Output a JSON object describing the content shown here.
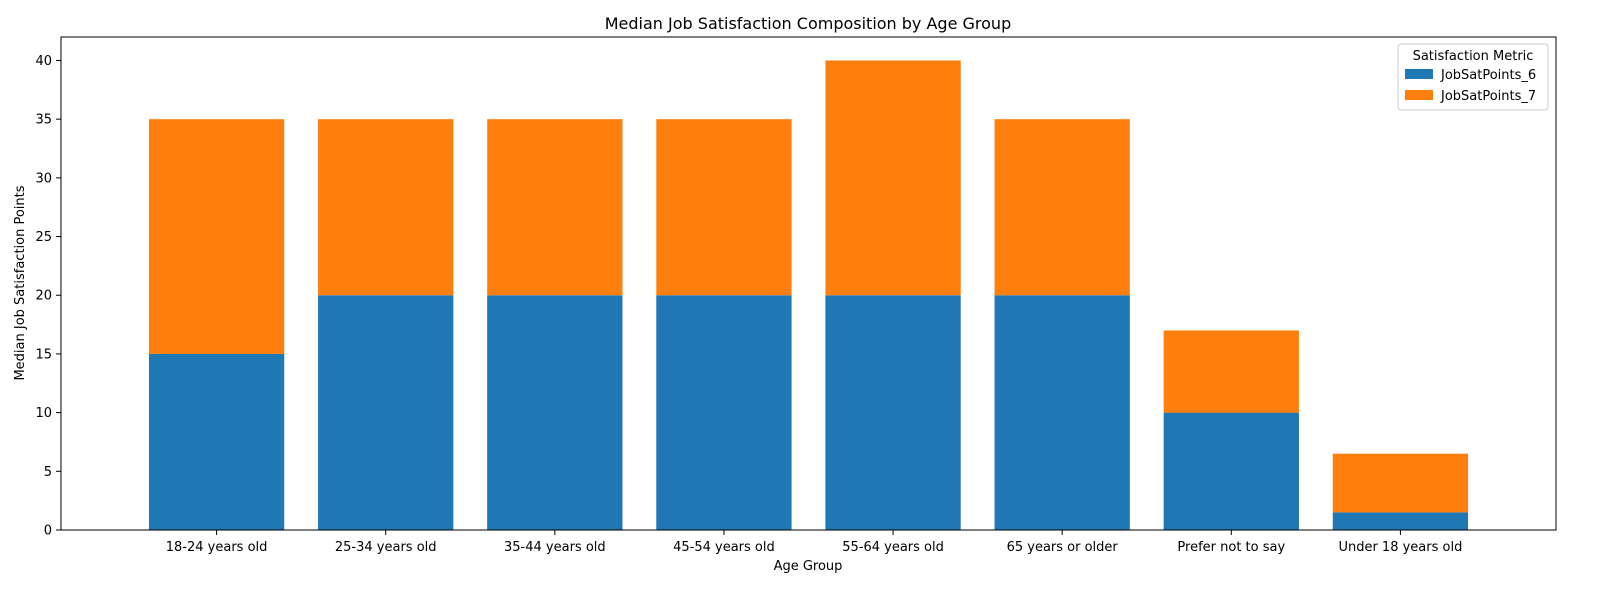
{
  "chart_data": {
    "type": "bar",
    "stacked": true,
    "title": "Median Job Satisfaction Composition by Age Group",
    "xlabel": "Age Group",
    "ylabel": "Median Job Satisfaction Points",
    "ylim": [
      0,
      42
    ],
    "yticks": [
      0,
      5,
      10,
      15,
      20,
      25,
      30,
      35,
      40
    ],
    "categories": [
      "18-24 years old",
      "25-34 years old",
      "35-44 years old",
      "45-54 years old",
      "55-64 years old",
      "65 years or older",
      "Prefer not to say",
      "Under 18 years old"
    ],
    "series": [
      {
        "name": "JobSatPoints_6",
        "color": "#1f77b4",
        "values": [
          15,
          20,
          20,
          20,
          20,
          20,
          10,
          1.5
        ]
      },
      {
        "name": "JobSatPoints_7",
        "color": "#ff7f0e",
        "values": [
          20,
          15,
          15,
          15,
          20,
          15,
          7,
          5
        ]
      }
    ],
    "legend": {
      "title": "Satisfaction Metric",
      "position": "top-right"
    },
    "grid": false
  }
}
